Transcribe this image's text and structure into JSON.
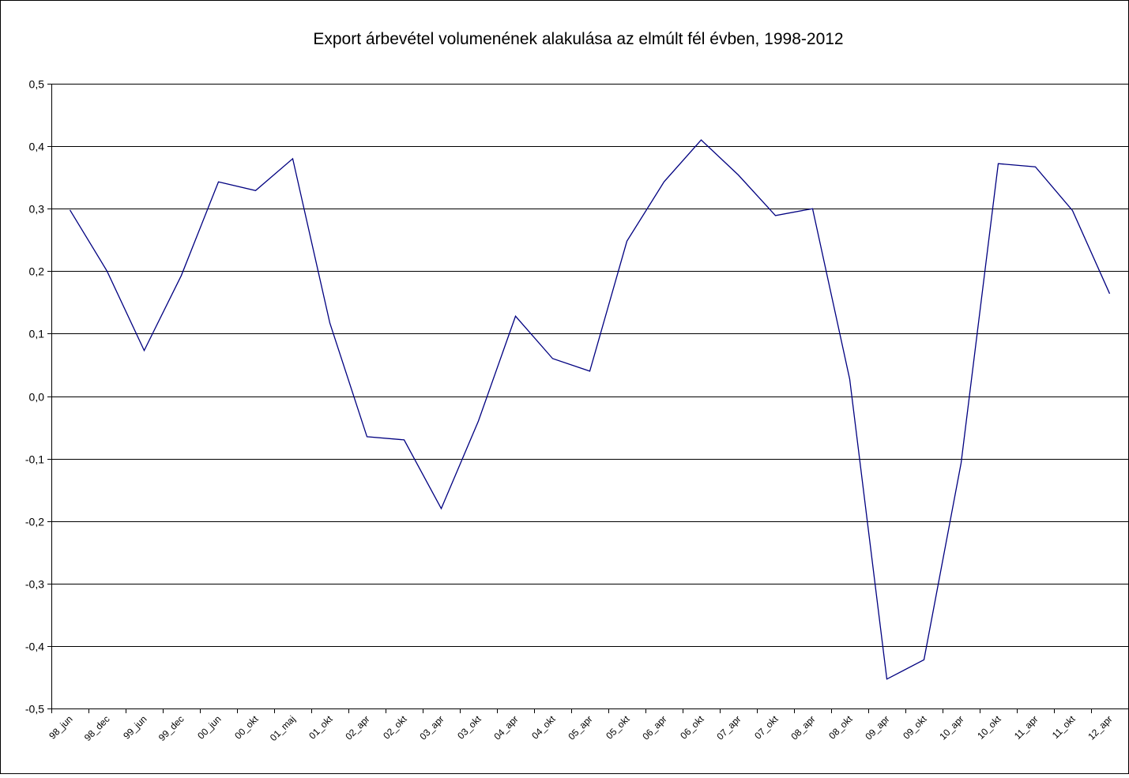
{
  "colors": {
    "background": "#ffffff",
    "border": "#000000",
    "gridline": "#000000",
    "series_line": "#000080"
  },
  "chart_data": {
    "type": "line",
    "title": "Export árbevétel volumenének alakulása az elmúlt fél évben, 1998-2012",
    "xlabel": "",
    "ylabel": "",
    "ylim": [
      -0.5,
      0.5
    ],
    "yticks": [
      "-0,5",
      "-0,4",
      "-0,3",
      "-0,2",
      "-0,1",
      "0,0",
      "0,1",
      "0,2",
      "0,3",
      "0,4",
      "0,5"
    ],
    "ytick_values": [
      -0.5,
      -0.4,
      -0.3,
      -0.2,
      -0.1,
      0.0,
      0.1,
      0.2,
      0.3,
      0.4,
      0.5
    ],
    "grid": true,
    "legend": "none",
    "categories": [
      "98_jun",
      "98_dec",
      "99_jun",
      "99_dec",
      "00_jun",
      "00_okt",
      "01_maj",
      "01_okt",
      "02_apr",
      "02_okt",
      "03_apr",
      "03_okt",
      "04_apr",
      "04_okt",
      "05_apr",
      "05_okt",
      "06_apr",
      "06_okt",
      "07_apr",
      "07_okt",
      "08_apr",
      "08_okt",
      "09_apr",
      "09_okt",
      "10_apr",
      "10_okt",
      "11_apr",
      "11_okt",
      "12_apr"
    ],
    "series": [
      {
        "values": [
          0.298,
          0.2,
          0.073,
          0.193,
          0.343,
          0.329,
          0.38,
          0.117,
          -0.065,
          -0.07,
          -0.18,
          -0.04,
          0.128,
          0.06,
          0.04,
          0.248,
          0.343,
          0.41,
          0.354,
          0.289,
          0.3,
          0.027,
          -0.453,
          -0.422,
          -0.107,
          0.372,
          0.367,
          0.297,
          0.164
        ],
        "color": "#000080"
      }
    ]
  }
}
